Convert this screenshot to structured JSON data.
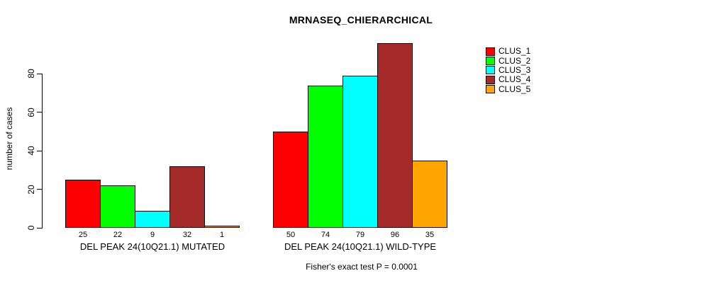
{
  "figure": {
    "title": "MRNASEQ_CHIERARCHICAL",
    "y_axis_label": "number of cases",
    "footer_annotation": "Fisher's exact test P = 0.0001"
  },
  "legend": {
    "items": [
      {
        "label": "CLUS_1",
        "color": "#FF0000"
      },
      {
        "label": "CLUS_2",
        "color": "#00FF00"
      },
      {
        "label": "CLUS_3",
        "color": "#00FFFF"
      },
      {
        "label": "CLUS_4",
        "color": "#A52A2A"
      },
      {
        "label": "CLUS_5",
        "color": "#FFA500"
      }
    ]
  },
  "chart_data": {
    "type": "bar",
    "title": "MRNASEQ_CHIERARCHICAL",
    "ylabel": "number of cases",
    "ylim": [
      0,
      80
    ],
    "yticks": [
      0,
      20,
      40,
      60,
      80
    ],
    "grid": false,
    "legend_position": "topright",
    "categories": [
      "DEL PEAK 24(10Q21.1) MUTATED",
      "DEL PEAK 24(10Q21.1) WILD-TYPE"
    ],
    "series": [
      {
        "name": "CLUS_1",
        "color": "#FF0000",
        "values": [
          25,
          50
        ]
      },
      {
        "name": "CLUS_2",
        "color": "#00FF00",
        "values": [
          22,
          74
        ]
      },
      {
        "name": "CLUS_3",
        "color": "#00FFFF",
        "values": [
          9,
          79
        ]
      },
      {
        "name": "CLUS_4",
        "color": "#A52A2A",
        "values": [
          32,
          96
        ]
      },
      {
        "name": "CLUS_5",
        "color": "#FFA500",
        "values": [
          1,
          35
        ]
      }
    ],
    "bar_value_labels": [
      [
        "25",
        "22",
        "9",
        "32",
        "1"
      ],
      [
        "50",
        "74",
        "79",
        "96",
        "35"
      ]
    ],
    "annotation": "Fisher's exact test P = 0.0001"
  }
}
